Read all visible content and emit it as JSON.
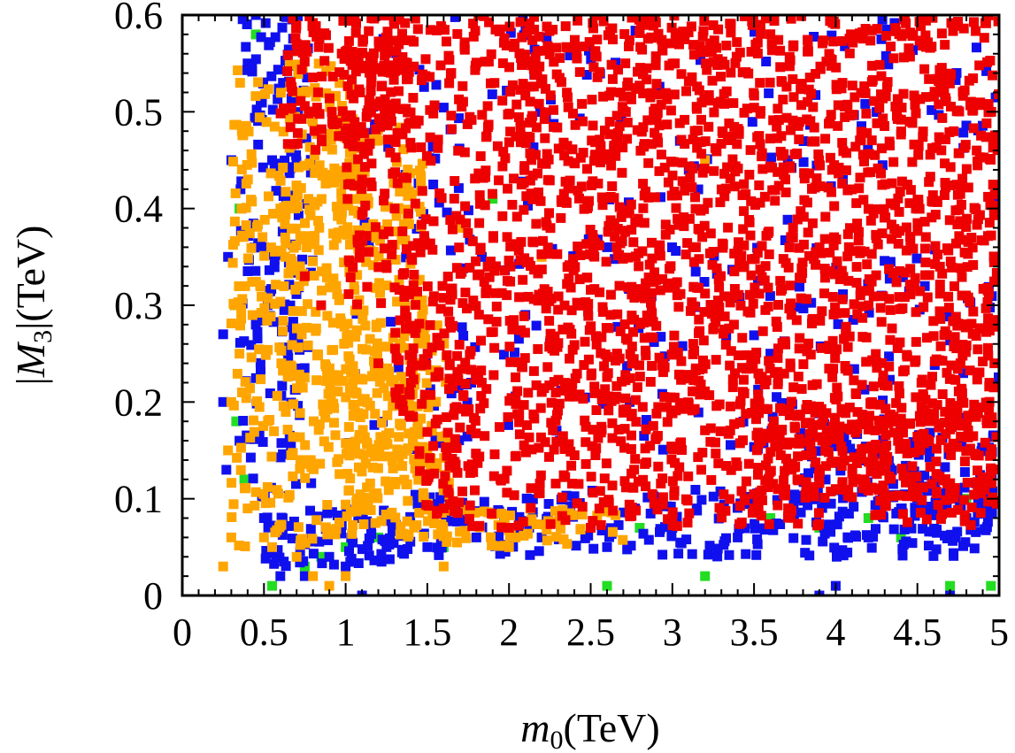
{
  "chart_data": {
    "type": "scatter",
    "title": "",
    "xlabel": "m0(TeV)",
    "ylabel": "|M3|(TeV)",
    "xlabel_parts": {
      "var": "m",
      "sub": "0",
      "unit": "(TeV)"
    },
    "ylabel_parts": {
      "pre": "|",
      "var": "M",
      "sub": "3",
      "post": "|",
      "unit": "(TeV)"
    },
    "xlim": [
      0,
      5
    ],
    "ylim": [
      0,
      0.6
    ],
    "xticks": [
      "0",
      "0.5",
      "1",
      "1.5",
      "2",
      "2.5",
      "3",
      "3.5",
      "4",
      "4.5",
      "5"
    ],
    "yticks": [
      "0",
      "0.1",
      "0.2",
      "0.3",
      "0.4",
      "0.5",
      "0.6"
    ],
    "grid": false,
    "marker": "square",
    "series": [
      {
        "name": "green",
        "color": "#22dd22",
        "points": [
          [
            0.45,
            0.58
          ],
          [
            0.35,
            0.4
          ],
          [
            0.32,
            0.3
          ],
          [
            0.33,
            0.18
          ],
          [
            0.38,
            0.12
          ],
          [
            0.55,
            0.01
          ],
          [
            0.75,
            0.03
          ],
          [
            0.85,
            0.04
          ],
          [
            1.0,
            0.05
          ],
          [
            1.2,
            0.06
          ],
          [
            1.6,
            0.05
          ],
          [
            2.2,
            0.06
          ],
          [
            2.6,
            0.01
          ],
          [
            2.8,
            0.07
          ],
          [
            3.2,
            0.02
          ],
          [
            3.3,
            0.09
          ],
          [
            3.6,
            0.08
          ],
          [
            3.9,
            0.07
          ],
          [
            4.2,
            0.08
          ],
          [
            4.4,
            0.06
          ],
          [
            4.7,
            0.01
          ],
          [
            4.8,
            0.1
          ],
          [
            4.95,
            0.01
          ],
          [
            4.6,
            0.09
          ],
          [
            1.9,
            0.41
          ]
        ],
        "clouds": []
      },
      {
        "name": "blue",
        "color": "#1010ee",
        "points": [
          [
            0.45,
            0.6
          ],
          [
            0.4,
            0.55
          ],
          [
            0.3,
            0.45
          ],
          [
            0.28,
            0.35
          ],
          [
            0.25,
            0.27
          ],
          [
            0.25,
            0.2
          ],
          [
            0.27,
            0.13
          ],
          [
            0.35,
            0.16
          ],
          [
            0.5,
            0.08
          ],
          [
            0.6,
            0.02
          ],
          [
            0.75,
            0.02
          ],
          [
            0.9,
            0.04
          ],
          [
            1.0,
            0.03
          ],
          [
            1.1,
            0.0
          ],
          [
            1.25,
            0.05
          ],
          [
            1.5,
            0.05
          ],
          [
            1.8,
            0.06
          ],
          [
            2.2,
            0.06
          ],
          [
            2.6,
            0.05
          ],
          [
            3.0,
            0.07
          ],
          [
            3.4,
            0.06
          ],
          [
            3.9,
            0.0
          ],
          [
            4.0,
            0.01
          ],
          [
            4.2,
            0.06
          ],
          [
            4.4,
            0.09
          ],
          [
            4.7,
            0.0
          ],
          [
            4.8,
            0.08
          ],
          [
            4.95,
            0.1
          ],
          [
            2.6,
            0.36
          ],
          [
            3.1,
            0.44
          ],
          [
            2.1,
            0.29
          ],
          [
            3.6,
            0.25
          ],
          [
            0.55,
            0.45
          ],
          [
            0.5,
            0.36
          ],
          [
            0.45,
            0.28
          ]
        ],
        "clouds": [
          {
            "x": [
              0.35,
              0.8
            ],
            "y": [
              0.1,
              0.6
            ],
            "n": 160
          },
          {
            "x": [
              0.5,
              1.3
            ],
            "y": [
              0.03,
              0.09
            ],
            "n": 70
          },
          {
            "x": [
              1.3,
              5.0
            ],
            "y": [
              0.04,
              0.11
            ],
            "n": 220
          },
          {
            "x": [
              3.8,
              5.0
            ],
            "y": [
              0.06,
              0.17
            ],
            "n": 120
          },
          {
            "x": [
              1.0,
              5.0
            ],
            "y": [
              0.15,
              0.6
            ],
            "n": 260
          }
        ]
      },
      {
        "name": "orange",
        "color": "#ffa500",
        "points": [
          [
            0.25,
            0.03
          ],
          [
            0.3,
            0.06
          ],
          [
            0.4,
            0.09
          ],
          [
            0.5,
            0.06
          ],
          [
            0.55,
            0.05
          ],
          [
            0.7,
            0.04
          ],
          [
            0.8,
            0.02
          ],
          [
            0.9,
            0.01
          ],
          [
            1.0,
            0.02
          ],
          [
            1.6,
            0.03
          ],
          [
            2.0,
            0.05
          ],
          [
            0.28,
            0.15
          ],
          [
            0.3,
            0.2
          ],
          [
            0.35,
            0.25
          ],
          [
            0.6,
            0.4
          ],
          [
            0.7,
            0.52
          ],
          [
            1.5,
            0.2
          ],
          [
            1.7,
            0.38
          ],
          [
            2.2,
            0.35
          ],
          [
            3.2,
            0.45
          ],
          [
            4.2,
            0.18
          ]
        ],
        "clouds": [
          {
            "x": [
              0.3,
              1.1
            ],
            "y": [
              0.05,
              0.55
            ],
            "n": 300
          },
          {
            "x": [
              0.6,
              1.5
            ],
            "y": [
              0.1,
              0.45
            ],
            "n": 260
          },
          {
            "x": [
              1.0,
              1.65
            ],
            "y": [
              0.06,
              0.28
            ],
            "n": 160
          },
          {
            "x": [
              0.9,
              1.4
            ],
            "y": [
              0.35,
              0.5
            ],
            "n": 50
          },
          {
            "x": [
              1.5,
              2.7
            ],
            "y": [
              0.05,
              0.09
            ],
            "n": 60
          }
        ]
      },
      {
        "name": "red",
        "color": "#ee0000",
        "points": [
          [
            1.6,
            0.09
          ],
          [
            1.5,
            0.12
          ],
          [
            1.3,
            0.4
          ],
          [
            1.1,
            0.43
          ],
          [
            1.0,
            0.48
          ],
          [
            0.8,
            0.5
          ],
          [
            0.7,
            0.57
          ],
          [
            0.75,
            0.33
          ],
          [
            0.85,
            0.3
          ],
          [
            1.2,
            0.24
          ],
          [
            1.4,
            0.22
          ],
          [
            4.7,
            0.1
          ],
          [
            4.9,
            0.12
          ],
          [
            4.0,
            0.11
          ],
          [
            3.5,
            0.09
          ],
          [
            3.0,
            0.08
          ],
          [
            2.5,
            0.07
          ],
          [
            2.0,
            0.07
          ]
        ],
        "clouds": [
          {
            "x": [
              0.6,
              1.4
            ],
            "y": [
              0.46,
              0.6
            ],
            "n": 160
          },
          {
            "x": [
              1.0,
              1.7
            ],
            "y": [
              0.3,
              0.6
            ],
            "n": 180
          },
          {
            "x": [
              1.3,
              1.7
            ],
            "y": [
              0.18,
              0.32
            ],
            "n": 80
          },
          {
            "x": [
              1.45,
              1.7
            ],
            "y": [
              0.08,
              0.18
            ],
            "n": 40
          },
          {
            "x": [
              1.7,
              5.0
            ],
            "y": [
              0.07,
              0.6
            ],
            "n": 1500
          },
          {
            "x": [
              2.0,
              5.0
            ],
            "y": [
              0.15,
              0.6
            ],
            "n": 700
          },
          {
            "x": [
              3.5,
              5.0
            ],
            "y": [
              0.1,
              0.2
            ],
            "n": 180
          }
        ]
      }
    ]
  }
}
